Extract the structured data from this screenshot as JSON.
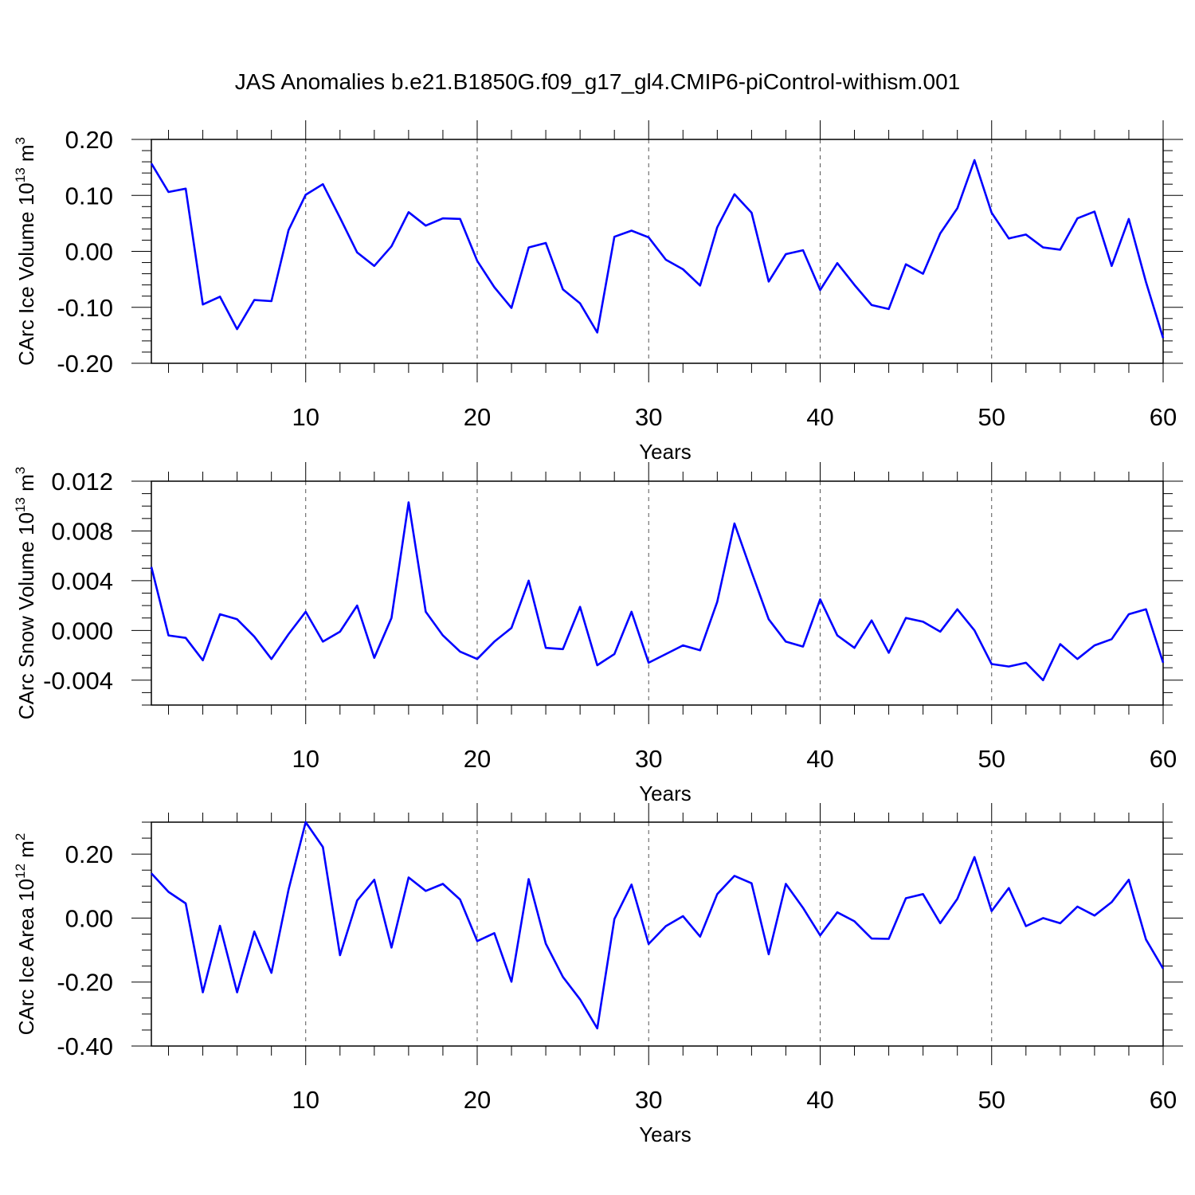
{
  "title": "JAS Anomalies b.e21.B1850G.f09_g17_gl4.CMIP6-piControl-withism.001",
  "chart_data": [
    {
      "type": "line",
      "xlabel": "Years",
      "ylabel": "CArc Ice Volume 10",
      "ylabel_sup": "13",
      "ylabel_unit": "m",
      "ylabel_unit_sup": "3",
      "xlim": [
        1,
        60
      ],
      "ylim": [
        -0.2,
        0.2
      ],
      "xticks": [
        10,
        20,
        30,
        40,
        50,
        60
      ],
      "yticks": [
        -0.2,
        -0.1,
        0.0,
        0.1,
        0.2
      ],
      "ytick_labels": [
        "-0.20",
        "-0.10",
        "0.00",
        "0.10",
        "0.20"
      ],
      "yminor_step": 0.02,
      "line_color": "#0000ff",
      "values": [
        0.157,
        0.106,
        0.112,
        -0.095,
        -0.081,
        -0.139,
        -0.087,
        -0.089,
        0.038,
        0.101,
        0.12,
        0.06,
        -0.002,
        -0.026,
        0.009,
        0.07,
        0.046,
        0.059,
        0.058,
        -0.017,
        -0.064,
        -0.101,
        0.007,
        0.015,
        -0.068,
        -0.093,
        -0.145,
        0.026,
        0.037,
        0.025,
        -0.015,
        -0.032,
        -0.061,
        0.043,
        0.102,
        0.069,
        -0.054,
        -0.005,
        0.002,
        -0.069,
        -0.021,
        -0.06,
        -0.096,
        -0.103,
        -0.023,
        -0.04,
        0.032,
        0.077,
        0.163,
        0.069,
        0.023,
        0.03,
        0.007,
        0.003,
        0.059,
        0.071,
        -0.026,
        0.058,
        -0.055,
        -0.155
      ]
    },
    {
      "type": "line",
      "xlabel": "Years",
      "ylabel": "CArc Snow Volume 10",
      "ylabel_sup": "13",
      "ylabel_unit": "m",
      "ylabel_unit_sup": "3",
      "xlim": [
        1,
        60
      ],
      "ylim": [
        -0.006,
        0.012
      ],
      "xticks": [
        10,
        20,
        30,
        40,
        50,
        60
      ],
      "yticks": [
        -0.004,
        0.0,
        0.004,
        0.008,
        0.012
      ],
      "ytick_labels": [
        "-0.004",
        "0.000",
        "0.004",
        "0.008",
        "0.012"
      ],
      "yminor_step": 0.001,
      "line_color": "#0000ff",
      "values": [
        0.0051,
        -0.0004,
        -0.0006,
        -0.0024,
        0.0013,
        0.0009,
        -0.0005,
        -0.0023,
        -0.0003,
        0.0015,
        -0.0009,
        -0.0001,
        0.002,
        -0.0022,
        0.001,
        0.0103,
        0.0015,
        -0.0004,
        -0.0017,
        -0.0023,
        -0.0009,
        0.0002,
        0.004,
        -0.0014,
        -0.0015,
        0.0019,
        -0.0028,
        -0.0019,
        0.0015,
        -0.0026,
        -0.0019,
        -0.0012,
        -0.0016,
        0.0023,
        0.0086,
        0.0047,
        0.0009,
        -0.0009,
        -0.0013,
        0.0025,
        -0.0004,
        -0.0014,
        0.0008,
        -0.0018,
        0.001,
        0.0007,
        -0.0001,
        0.0017,
        0.0,
        -0.0027,
        -0.0029,
        -0.0026,
        -0.004,
        -0.0011,
        -0.0023,
        -0.0012,
        -0.0007,
        0.0013,
        0.0017,
        -0.0026
      ]
    },
    {
      "type": "line",
      "xlabel": "Years",
      "ylabel": "CArc Ice Area 10",
      "ylabel_sup": "12",
      "ylabel_unit": "m",
      "ylabel_unit_sup": "2",
      "xlim": [
        1,
        60
      ],
      "ylim": [
        -0.4,
        0.3
      ],
      "xticks": [
        10,
        20,
        30,
        40,
        50,
        60
      ],
      "yticks": [
        -0.4,
        -0.2,
        0.0,
        0.2
      ],
      "ytick_labels": [
        "-0.40",
        "-0.20",
        "0.00",
        "0.20"
      ],
      "yminor_step": 0.05,
      "line_color": "#0000ff",
      "values": [
        0.14,
        0.082,
        0.046,
        -0.232,
        -0.024,
        -0.232,
        -0.042,
        -0.171,
        0.089,
        0.3,
        0.222,
        -0.116,
        0.055,
        0.12,
        -0.092,
        0.127,
        0.085,
        0.107,
        0.058,
        -0.072,
        -0.047,
        -0.199,
        0.122,
        -0.08,
        -0.184,
        -0.254,
        -0.345,
        -0.003,
        0.105,
        -0.081,
        -0.025,
        0.006,
        -0.058,
        0.075,
        0.132,
        0.109,
        -0.113,
        0.107,
        0.032,
        -0.054,
        0.018,
        -0.01,
        -0.064,
        -0.065,
        0.062,
        0.075,
        -0.016,
        0.06,
        0.191,
        0.022,
        0.094,
        -0.025,
        0.0,
        -0.016,
        0.036,
        0.008,
        0.05,
        0.12,
        -0.067,
        -0.158
      ]
    }
  ]
}
